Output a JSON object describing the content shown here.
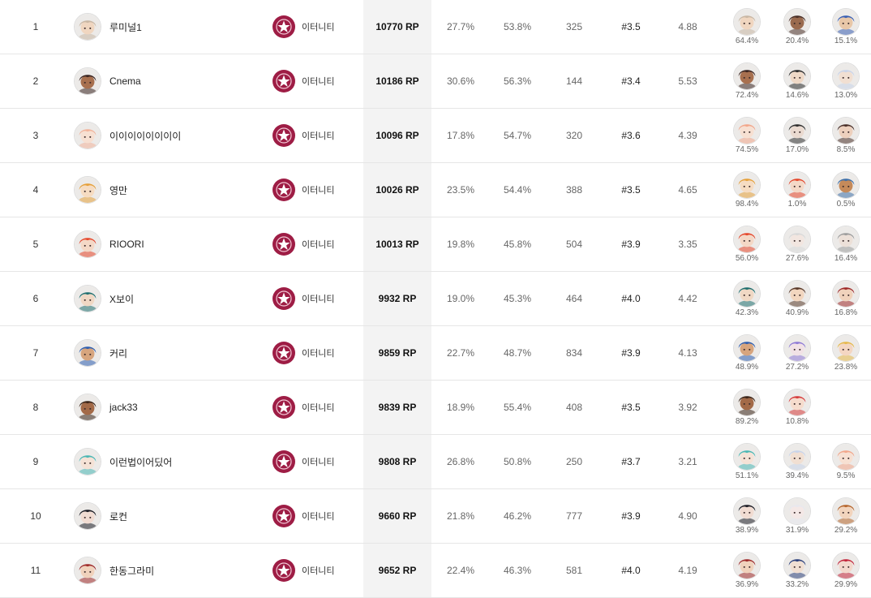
{
  "rows": [
    {
      "rank": "1",
      "name": "루미널1",
      "tier": "이터니티",
      "rp": "10770 RP",
      "s1": "27.7%",
      "s2": "53.8%",
      "s3": "325",
      "s4": "#3.5",
      "s5": "4.88",
      "avatar": {
        "hair": "#c9b7a4",
        "skin": "#f0d6c0"
      },
      "chars": [
        {
          "pct": "64.4%",
          "hair": "#c9b7a4",
          "skin": "#f0d6c0"
        },
        {
          "pct": "20.4%",
          "hair": "#4a3028",
          "skin": "#9a6a4e"
        },
        {
          "pct": "15.1%",
          "hair": "#3a5fb3",
          "skin": "#e8c7a8"
        }
      ]
    },
    {
      "rank": "2",
      "name": "Cnema",
      "tier": "이터니티",
      "rp": "10186 RP",
      "s1": "30.6%",
      "s2": "56.3%",
      "s3": "144",
      "s4": "#3.4",
      "s5": "5.53",
      "avatar": {
        "hair": "#3a2420",
        "skin": "#a8704f"
      },
      "chars": [
        {
          "pct": "72.4%",
          "hair": "#3a2420",
          "skin": "#a8704f"
        },
        {
          "pct": "14.6%",
          "hair": "#2a2a2a",
          "skin": "#eed8c6"
        },
        {
          "pct": "13.0%",
          "hair": "#c9d4ea",
          "skin": "#f1dfd2"
        }
      ]
    },
    {
      "rank": "3",
      "name": "이이이이이이이이",
      "tier": "이터니티",
      "rp": "10096 RP",
      "s1": "17.8%",
      "s2": "54.7%",
      "s3": "320",
      "s4": "#3.6",
      "s5": "4.39",
      "avatar": {
        "hair": "#f2b39a",
        "skin": "#f7e0d2"
      },
      "chars": [
        {
          "pct": "74.5%",
          "hair": "#f2a68a",
          "skin": "#f7e0d2"
        },
        {
          "pct": "17.0%",
          "hair": "#2f2f2f",
          "skin": "#eadad0"
        },
        {
          "pct": "8.5%",
          "hair": "#4a2f28",
          "skin": "#edd0bd"
        }
      ]
    },
    {
      "rank": "4",
      "name": "영만",
      "tier": "이터니티",
      "rp": "10026 RP",
      "s1": "23.5%",
      "s2": "54.4%",
      "s3": "388",
      "s4": "#3.5",
      "s5": "4.65",
      "avatar": {
        "hair": "#e6a03a",
        "skin": "#f6dcc2"
      },
      "chars": [
        {
          "pct": "98.4%",
          "hair": "#e6a03a",
          "skin": "#f6dcc2"
        },
        {
          "pct": "1.0%",
          "hair": "#e5462a",
          "skin": "#f4d8c6"
        },
        {
          "pct": "0.5%",
          "hair": "#3e6fa8",
          "skin": "#c58a5a"
        }
      ]
    },
    {
      "rank": "5",
      "name": "RIOORI",
      "tier": "이터니티",
      "rp": "10013 RP",
      "s1": "19.8%",
      "s2": "45.8%",
      "s3": "504",
      "s4": "#3.9",
      "s5": "3.35",
      "avatar": {
        "hair": "#e5462a",
        "skin": "#f4d8c6"
      },
      "chars": [
        {
          "pct": "56.0%",
          "hair": "#e5462a",
          "skin": "#f4d8c6"
        },
        {
          "pct": "27.6%",
          "hair": "#d9d9d9",
          "skin": "#f2e6e0"
        },
        {
          "pct": "16.4%",
          "hair": "#9c9c9c",
          "skin": "#ece0d8"
        }
      ]
    },
    {
      "rank": "6",
      "name": "X보이",
      "tier": "이터니티",
      "rp": "9932 RP",
      "s1": "19.0%",
      "s2": "45.3%",
      "s3": "464",
      "s4": "#4.0",
      "s5": "4.42",
      "avatar": {
        "hair": "#1f6f6f",
        "skin": "#f0d8c4"
      },
      "chars": [
        {
          "pct": "42.3%",
          "hair": "#1f6f6f",
          "skin": "#f0d8c4"
        },
        {
          "pct": "40.9%",
          "hair": "#5a3a2a",
          "skin": "#f2d6bf"
        },
        {
          "pct": "16.8%",
          "hair": "#9e2a2a",
          "skin": "#f0d2bc"
        }
      ]
    },
    {
      "rank": "7",
      "name": "커리",
      "tier": "이터니티",
      "rp": "9859 RP",
      "s1": "22.7%",
      "s2": "48.7%",
      "s3": "834",
      "s4": "#3.9",
      "s5": "4.13",
      "avatar": {
        "hair": "#2f5fb0",
        "skin": "#d7a57e"
      },
      "chars": [
        {
          "pct": "48.9%",
          "hair": "#2f5fb0",
          "skin": "#d7a57e"
        },
        {
          "pct": "27.2%",
          "hair": "#8f7ad6",
          "skin": "#f2e2e6"
        },
        {
          "pct": "23.8%",
          "hair": "#e6b84a",
          "skin": "#f4d6c2"
        }
      ]
    },
    {
      "rank": "8",
      "name": "jack33",
      "tier": "이터니티",
      "rp": "9839 RP",
      "s1": "18.9%",
      "s2": "55.4%",
      "s3": "408",
      "s4": "#3.5",
      "s5": "3.92",
      "avatar": {
        "hair": "#3a2418",
        "skin": "#a36a48"
      },
      "chars": [
        {
          "pct": "89.2%",
          "hair": "#3a2418",
          "skin": "#a36a48"
        },
        {
          "pct": "10.8%",
          "hair": "#d63a3a",
          "skin": "#f6dccd"
        }
      ]
    },
    {
      "rank": "9",
      "name": "이런법이어딨어",
      "tier": "이터니티",
      "rp": "9808 RP",
      "s1": "26.8%",
      "s2": "50.8%",
      "s3": "250",
      "s4": "#3.7",
      "s5": "3.21",
      "avatar": {
        "hair": "#4bb7b4",
        "skin": "#f5e2d6"
      },
      "chars": [
        {
          "pct": "51.1%",
          "hair": "#4bb7b4",
          "skin": "#f5e2d6"
        },
        {
          "pct": "39.4%",
          "hair": "#c9d4ea",
          "skin": "#f1dfd2"
        },
        {
          "pct": "9.5%",
          "hair": "#f2a68a",
          "skin": "#f7e0d2"
        }
      ]
    },
    {
      "rank": "10",
      "name": "로컨",
      "tier": "이터니티",
      "rp": "9660 RP",
      "s1": "21.8%",
      "s2": "46.2%",
      "s3": "777",
      "s4": "#3.9",
      "s5": "4.90",
      "avatar": {
        "hair": "#1c1c24",
        "skin": "#f1dcd2"
      },
      "chars": [
        {
          "pct": "38.9%",
          "hair": "#1c1c24",
          "skin": "#f1dcd2"
        },
        {
          "pct": "31.9%",
          "hair": "#e8e8ee",
          "skin": "#f4e8e6"
        },
        {
          "pct": "29.2%",
          "hair": "#b5642a",
          "skin": "#f2d4bd"
        }
      ]
    },
    {
      "rank": "11",
      "name": "한동그라미",
      "tier": "이터니티",
      "rp": "9652 RP",
      "s1": "22.4%",
      "s2": "46.3%",
      "s3": "581",
      "s4": "#4.0",
      "s5": "4.19",
      "avatar": {
        "hair": "#9e2a2a",
        "skin": "#f0d2bc"
      },
      "chars": [
        {
          "pct": "36.9%",
          "hair": "#9e2a2a",
          "skin": "#f0d2bc"
        },
        {
          "pct": "33.2%",
          "hair": "#2c3f7a",
          "skin": "#f1dfd2"
        },
        {
          "pct": "29.9%",
          "hair": "#c2243a",
          "skin": "#f3d8cc"
        }
      ]
    }
  ]
}
